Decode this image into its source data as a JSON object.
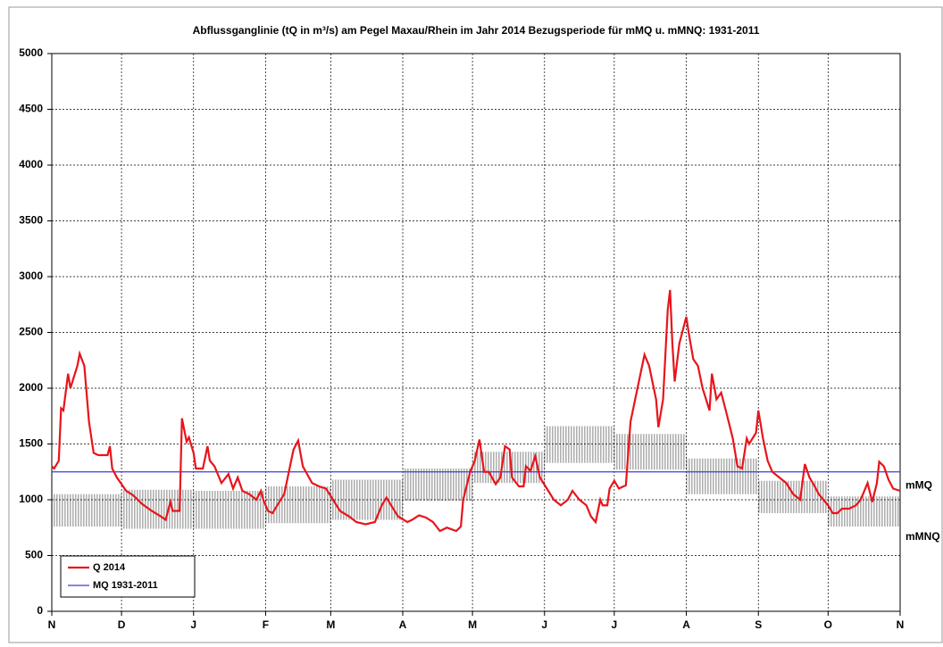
{
  "chart_data": {
    "type": "line",
    "title": "Abflussganglinie (tQ in m³/s) am Pegel Maxau/Rhein im Jahr 2014 Bezugsperiode für mMQ u. mMNQ: 1931-2011",
    "xlim": [
      0,
      365
    ],
    "xticks": [
      {
        "value": 0,
        "label": "N"
      },
      {
        "value": 30,
        "label": "D"
      },
      {
        "value": 61,
        "label": "J"
      },
      {
        "value": 92,
        "label": "F"
      },
      {
        "value": 120,
        "label": "M"
      },
      {
        "value": 151,
        "label": "A"
      },
      {
        "value": 181,
        "label": "M"
      },
      {
        "value": 212,
        "label": "J"
      },
      {
        "value": 242,
        "label": "J"
      },
      {
        "value": 273,
        "label": "A"
      },
      {
        "value": 304,
        "label": "S"
      },
      {
        "value": 334,
        "label": "O"
      },
      {
        "value": 365,
        "label": "N"
      }
    ],
    "ylim": [
      0,
      5000
    ],
    "yticks": [
      0,
      500,
      1000,
      1500,
      2000,
      2500,
      3000,
      3500,
      4000,
      4500,
      5000
    ],
    "grid": true,
    "legend": "bottom-left",
    "bands": [
      {
        "name": "mMQ",
        "values": [
          1050,
          1090,
          1080,
          1120,
          1180,
          1280,
          1430,
          1660,
          1590,
          1370,
          1170,
          1030
        ]
      },
      {
        "name": "mMNQ",
        "values": [
          760,
          740,
          740,
          790,
          820,
          990,
          1150,
          1330,
          1270,
          1050,
          880,
          760
        ]
      }
    ],
    "band_color": "#b0b0b0",
    "series": [
      {
        "name": "Q 2014",
        "color": "#e8141b",
        "x": [
          0,
          1,
          3,
          4,
          5,
          7,
          8,
          11,
          12,
          14,
          15,
          16,
          18,
          20,
          24,
          25,
          26,
          28,
          32,
          35,
          39,
          43,
          47,
          49,
          51,
          52,
          55,
          56,
          58,
          59,
          61,
          62,
          65,
          67,
          68,
          70,
          73,
          76,
          78,
          80,
          82,
          85,
          88,
          90,
          91,
          93,
          95,
          97,
          100,
          102,
          104,
          106,
          108,
          112,
          115,
          118,
          121,
          124,
          128,
          131,
          135,
          139,
          142,
          144,
          146,
          149,
          153,
          155,
          158,
          161,
          164,
          167,
          170,
          174,
          176,
          177,
          180,
          182,
          184,
          186,
          188,
          191,
          193,
          195,
          197,
          198,
          201,
          203,
          204,
          206,
          208,
          210,
          213,
          216,
          219,
          222,
          224,
          227,
          230,
          232,
          234,
          236,
          237,
          239,
          240,
          242,
          244,
          247,
          249,
          251,
          254,
          255,
          257,
          260,
          261,
          263,
          265,
          266,
          267,
          268,
          270,
          273,
          274,
          276,
          278,
          280,
          283,
          284,
          286,
          288,
          290,
          293,
          295,
          297,
          299,
          300,
          303,
          304,
          306,
          308,
          310,
          313,
          316,
          319,
          322,
          324,
          326,
          328,
          330,
          334,
          336,
          338,
          340,
          343,
          346,
          348,
          351,
          353,
          355,
          356,
          358,
          360,
          362,
          365
        ],
        "values": [
          1300,
          1280,
          1350,
          1820,
          1800,
          2130,
          2000,
          2200,
          2310,
          2200,
          1950,
          1700,
          1420,
          1400,
          1400,
          1480,
          1280,
          1200,
          1080,
          1040,
          960,
          900,
          850,
          820,
          980,
          900,
          900,
          1730,
          1520,
          1560,
          1420,
          1280,
          1280,
          1480,
          1350,
          1300,
          1150,
          1230,
          1100,
          1200,
          1080,
          1050,
          1000,
          1080,
          1000,
          900,
          880,
          950,
          1050,
          1250,
          1450,
          1530,
          1300,
          1150,
          1120,
          1100,
          1000,
          900,
          850,
          800,
          780,
          800,
          950,
          1020,
          950,
          850,
          800,
          820,
          860,
          840,
          800,
          720,
          750,
          720,
          760,
          1000,
          1250,
          1350,
          1540,
          1250,
          1250,
          1140,
          1200,
          1480,
          1450,
          1200,
          1120,
          1120,
          1300,
          1260,
          1390,
          1200,
          1100,
          1000,
          950,
          1000,
          1080,
          1000,
          950,
          850,
          800,
          1000,
          950,
          950,
          1100,
          1170,
          1100,
          1130,
          1700,
          1900,
          2200,
          2300,
          2200,
          1900,
          1650,
          1900,
          2700,
          2880,
          2400,
          2060,
          2400,
          2640,
          2500,
          2260,
          2200,
          2000,
          1800,
          2130,
          1900,
          1960,
          1800,
          1550,
          1300,
          1280,
          1550,
          1500,
          1600,
          1800,
          1550,
          1350,
          1250,
          1200,
          1150,
          1050,
          1000,
          1320,
          1200,
          1130,
          1050,
          950,
          880,
          880,
          920,
          920,
          950,
          1000,
          1150,
          980,
          1150,
          1340,
          1300,
          1180,
          1100,
          1080
        ]
      },
      {
        "name": "MQ 1931-2011",
        "color": "#3b3bdb",
        "x": [
          0,
          365
        ],
        "values": [
          1250,
          1250
        ]
      }
    ]
  }
}
